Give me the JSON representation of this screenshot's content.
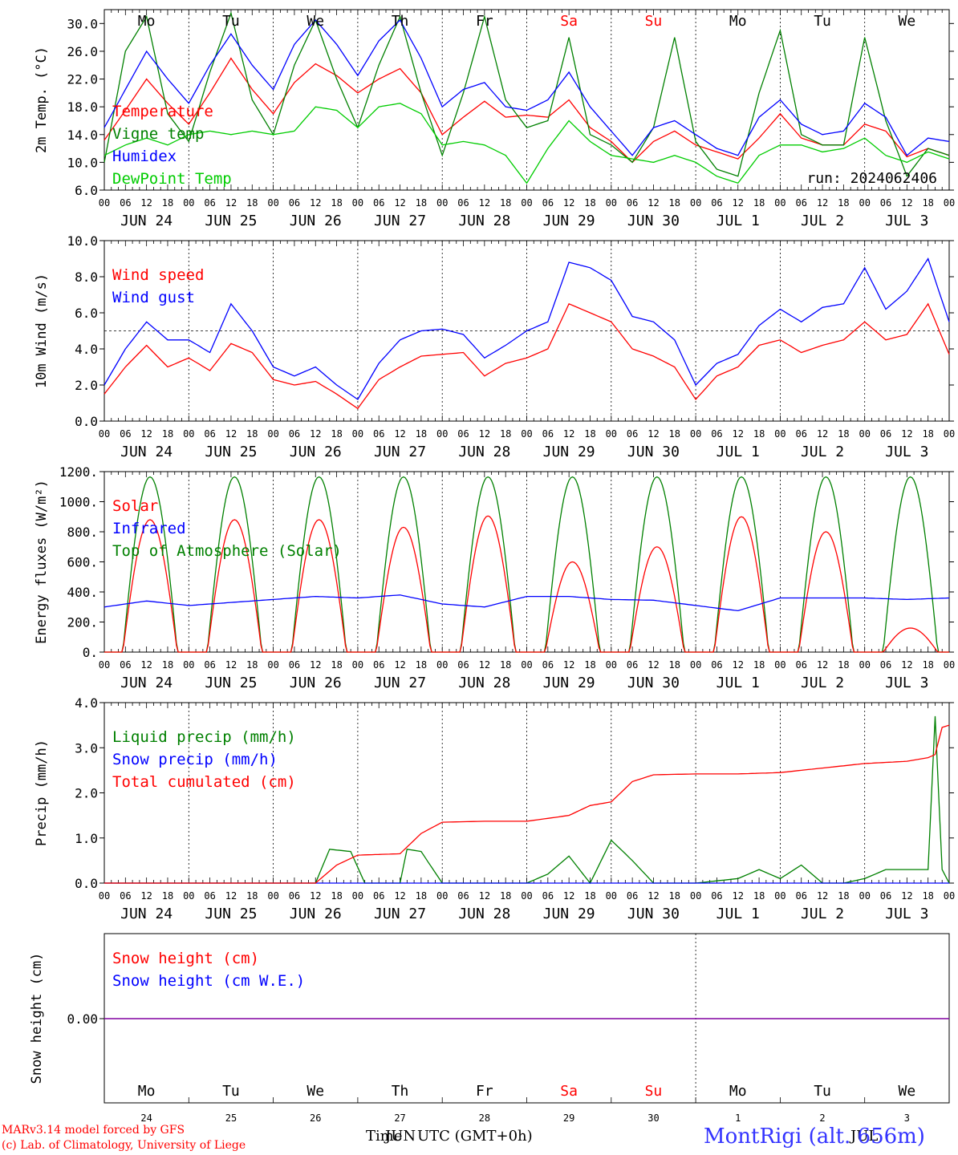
{
  "chart_data": [
    {
      "type": "line",
      "ylabel": "2m Temp. (°C)",
      "ylim": [
        6.0,
        32.0
      ],
      "yticks": [
        "6.0",
        "10.0",
        "14.0",
        "18.0",
        "22.0",
        "26.0",
        "30.0"
      ],
      "weekdays": [
        "Mo",
        "Tu",
        "We",
        "Th",
        "Fr",
        "Sa",
        "Su",
        "Mo",
        "Tu",
        "We"
      ],
      "weekday_colors": [
        "#000000",
        "#000000",
        "#000000",
        "#000000",
        "#000000",
        "#ff0000",
        "#ff0000",
        "#000000",
        "#000000",
        "#000000"
      ],
      "run_label": "run: 2024062406",
      "x_hours": [
        0,
        6,
        12,
        18,
        24,
        30,
        36,
        42,
        48,
        54,
        60,
        66,
        72,
        78,
        84,
        90,
        96,
        102,
        108,
        114,
        120,
        126,
        132,
        138,
        144,
        150,
        156,
        162,
        168,
        174,
        180,
        186,
        192,
        198,
        204,
        210,
        216,
        222,
        228,
        234,
        240
      ],
      "series": [
        {
          "name": "Temperature",
          "color": "#ff0000",
          "values": [
            13.2,
            17.5,
            22.0,
            18.5,
            15.5,
            20.0,
            25.0,
            20.5,
            17.0,
            21.5,
            24.2,
            22.5,
            20.0,
            22.0,
            23.5,
            20.0,
            14.0,
            16.5,
            18.8,
            16.5,
            16.8,
            16.5,
            19.0,
            15.0,
            13.0,
            10.0,
            13.0,
            14.5,
            12.5,
            11.5,
            10.5,
            13.5,
            17.0,
            13.5,
            12.5,
            12.5,
            15.5,
            14.5,
            10.8,
            12.0,
            11.0
          ]
        },
        {
          "name": "Vigne temp",
          "color": "#008000",
          "values": [
            10.0,
            26.0,
            31.0,
            17.0,
            13.0,
            23.0,
            31.5,
            19.0,
            14.0,
            24.0,
            30.5,
            22.0,
            15.0,
            24.0,
            31.0,
            20.0,
            11.0,
            20.0,
            31.0,
            19.0,
            15.0,
            16.0,
            28.0,
            14.0,
            12.5,
            10.0,
            15.0,
            28.0,
            13.0,
            9.0,
            8.0,
            20.0,
            29.0,
            14.0,
            12.5,
            12.5,
            28.0,
            16.0,
            8.0,
            12.0,
            11.0
          ]
        },
        {
          "name": "Humidex",
          "color": "#0000ff",
          "values": [
            15.0,
            20.5,
            26.0,
            22.0,
            18.5,
            24.0,
            28.5,
            24.0,
            20.5,
            27.0,
            30.5,
            27.0,
            22.5,
            27.5,
            30.5,
            25.0,
            18.0,
            20.5,
            21.5,
            18.0,
            17.5,
            19.0,
            23.0,
            18.0,
            14.5,
            11.0,
            15.0,
            16.0,
            14.0,
            12.0,
            11.0,
            16.5,
            19.0,
            15.5,
            14.0,
            14.5,
            18.5,
            16.5,
            11.0,
            13.5,
            13.0
          ]
        },
        {
          "name": "DewPoint Temp",
          "color": "#00cc00",
          "values": [
            11.0,
            12.5,
            13.5,
            12.5,
            14.0,
            14.5,
            14.0,
            14.5,
            14.0,
            14.5,
            18.0,
            17.5,
            15.0,
            18.0,
            18.5,
            17.0,
            12.5,
            13.0,
            12.5,
            11.0,
            7.0,
            12.0,
            16.0,
            13.0,
            11.0,
            10.5,
            10.0,
            11.0,
            10.0,
            8.0,
            7.0,
            11.0,
            12.5,
            12.5,
            11.5,
            12.0,
            13.5,
            11.0,
            10.0,
            11.5,
            10.5
          ]
        }
      ],
      "grid": true,
      "legend": "top-left"
    },
    {
      "type": "line",
      "ylabel": "10m Wind (m/s)",
      "ylim": [
        0.0,
        10.0
      ],
      "yticks": [
        "0.0",
        "2.0",
        "4.0",
        "6.0",
        "8.0",
        "10.0"
      ],
      "reference_line": 5.0,
      "x_hours": [
        0,
        6,
        12,
        18,
        24,
        30,
        36,
        42,
        48,
        54,
        60,
        66,
        72,
        78,
        84,
        90,
        96,
        102,
        108,
        114,
        120,
        126,
        132,
        138,
        144,
        150,
        156,
        162,
        168,
        174,
        180,
        186,
        192,
        198,
        204,
        210,
        216,
        222,
        228,
        234,
        240
      ],
      "series": [
        {
          "name": "Wind speed",
          "color": "#ff0000",
          "values": [
            1.5,
            3.0,
            4.2,
            3.0,
            3.5,
            2.8,
            4.3,
            3.8,
            2.3,
            2.0,
            2.2,
            1.5,
            0.7,
            2.3,
            3.0,
            3.6,
            3.7,
            3.8,
            2.5,
            3.2,
            3.5,
            4.0,
            6.5,
            6.0,
            5.5,
            4.0,
            3.6,
            3.0,
            1.2,
            2.5,
            3.0,
            4.2,
            4.5,
            3.8,
            4.2,
            4.5,
            5.5,
            4.5,
            4.8,
            6.5,
            3.7
          ]
        },
        {
          "name": "Wind gust",
          "color": "#0000ff",
          "values": [
            2.0,
            4.0,
            5.5,
            4.5,
            4.5,
            3.8,
            6.5,
            5.0,
            3.0,
            2.5,
            3.0,
            2.0,
            1.2,
            3.2,
            4.5,
            5.0,
            5.1,
            4.8,
            3.5,
            4.2,
            5.0,
            5.5,
            8.8,
            8.5,
            7.8,
            5.8,
            5.5,
            4.5,
            2.0,
            3.2,
            3.7,
            5.3,
            6.2,
            5.5,
            6.3,
            6.5,
            8.5,
            6.2,
            7.2,
            9.0,
            5.5
          ]
        }
      ],
      "grid": true,
      "legend": "top-left"
    },
    {
      "type": "line",
      "ylabel": "Energy fluxes (W/m²)",
      "ylim": [
        0,
        1200
      ],
      "yticks": [
        "0.",
        "200.",
        "400.",
        "600.",
        "800.",
        "1000.",
        "1200."
      ],
      "daily_peak_hour": 13,
      "daily_daylength_hours": 15.5,
      "series": [
        {
          "name": "Solar",
          "color": "#ff0000",
          "daily_peaks": [
            880,
            880,
            880,
            830,
            905,
            600,
            700,
            900,
            800,
            160
          ]
        },
        {
          "name": "Infrared",
          "color": "#0000ff",
          "x_hours": [
            0,
            12,
            24,
            36,
            48,
            60,
            72,
            84,
            96,
            108,
            120,
            132,
            144,
            156,
            168,
            180,
            192,
            204,
            216,
            228,
            240
          ],
          "values": [
            300,
            340,
            310,
            330,
            350,
            370,
            360,
            380,
            320,
            300,
            370,
            370,
            350,
            345,
            310,
            275,
            360,
            360,
            360,
            350,
            360
          ]
        },
        {
          "name": "Top of Atmosphere (Solar)",
          "color": "#008000",
          "daily_peaks": [
            1165,
            1165,
            1165,
            1165,
            1165,
            1165,
            1165,
            1165,
            1165,
            1165
          ]
        }
      ],
      "grid": true,
      "legend": "top-left"
    },
    {
      "type": "line",
      "ylabel": "Precip (mm/h)",
      "ylim": [
        0.0,
        4.0
      ],
      "yticks": [
        "0.0",
        "1.0",
        "2.0",
        "3.0",
        "4.0"
      ],
      "series": [
        {
          "name": "Liquid precip (mm/h)",
          "color": "#008000",
          "x_hours": [
            0,
            60,
            64,
            70,
            74,
            78,
            84,
            86,
            90,
            96,
            108,
            120,
            126,
            132,
            138,
            144,
            150,
            156,
            168,
            180,
            186,
            192,
            198,
            204,
            210,
            216,
            222,
            228,
            234,
            236,
            238,
            240
          ],
          "values": [
            0,
            0,
            0.75,
            0.7,
            0.0,
            0.0,
            0.0,
            0.75,
            0.7,
            0.0,
            0.0,
            0.0,
            0.2,
            0.6,
            0.0,
            0.95,
            0.5,
            0.0,
            0.0,
            0.1,
            0.3,
            0.1,
            0.4,
            0.0,
            0.0,
            0.1,
            0.3,
            0.3,
            0.3,
            3.7,
            0.3,
            0.0
          ]
        },
        {
          "name": "Snow precip (mm/h)",
          "color": "#0000ff",
          "x_hours": [
            0,
            240
          ],
          "values": [
            0,
            0
          ]
        },
        {
          "name": "Total cumulated (cm)",
          "color": "#ff0000",
          "x_hours": [
            0,
            60,
            66,
            72,
            84,
            90,
            96,
            108,
            120,
            132,
            138,
            144,
            150,
            156,
            168,
            180,
            192,
            204,
            216,
            228,
            234,
            236,
            238,
            240
          ],
          "values": [
            0,
            0,
            0.4,
            0.62,
            0.65,
            1.1,
            1.35,
            1.37,
            1.37,
            1.5,
            1.72,
            1.8,
            2.25,
            2.4,
            2.42,
            2.42,
            2.45,
            2.55,
            2.65,
            2.7,
            2.78,
            2.85,
            3.45,
            3.5
          ]
        }
      ],
      "grid": true,
      "legend": "top-left"
    },
    {
      "type": "line",
      "ylabel": "Snow height (cm)",
      "yticks": [
        "0.00"
      ],
      "weekdays": [
        "Mo",
        "Tu",
        "We",
        "Th",
        "Fr",
        "Sa",
        "Su",
        "Mo",
        "Tu",
        "We"
      ],
      "weekday_colors": [
        "#000000",
        "#000000",
        "#000000",
        "#000000",
        "#000000",
        "#ff0000",
        "#ff0000",
        "#000000",
        "#000000",
        "#000000"
      ],
      "day_numbers": [
        "24",
        "25",
        "26",
        "27",
        "28",
        "29",
        "30",
        "1",
        "2",
        "3"
      ],
      "series": [
        {
          "name": "Snow height (cm)",
          "color": "#ff0000",
          "values": [
            0,
            0
          ]
        },
        {
          "name": "Snow height (cm W.E.)",
          "color": "#0000ff",
          "values": [
            0,
            0
          ]
        }
      ],
      "grid": true,
      "legend": "top-left"
    }
  ],
  "x_axis": {
    "hour_labels": [
      "00",
      "06",
      "12",
      "18"
    ],
    "end_label": "00",
    "date_labels": [
      "JUN 24",
      "JUN 25",
      "JUN 26",
      "JUN 27",
      "JUN 28",
      "JUN 29",
      "JUN 30",
      "JUL  1",
      "JUL  2",
      "JUL  3"
    ]
  },
  "footer": {
    "model_line": "MARv3.14 model forced by GFS",
    "copyright_line": "(c) Lab. of Climatology, University of Liege",
    "xlabel": "Time",
    "xlabel_overlap": "JUN",
    "xlabel_tz": "UTC (GMT+0h)",
    "xlabel_overlap2": "JUL",
    "station": "MontRigi (alt. 656m)"
  }
}
